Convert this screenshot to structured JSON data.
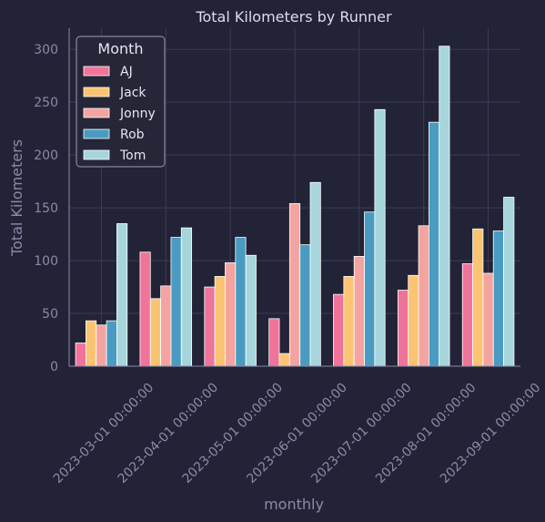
{
  "chart_data": {
    "type": "bar",
    "title": "Total Kilometers by Runner",
    "xlabel": "monthly",
    "ylabel": "Total Kilometers",
    "ylim": [
      0,
      320
    ],
    "yticks": [
      "0",
      "50",
      "100",
      "150",
      "200",
      "250",
      "300"
    ],
    "grid": true,
    "legend": {
      "title": "Month",
      "placement": "top-left"
    },
    "categories": [
      "2023-03-01 00:00:00",
      "2023-04-01 00:00:00",
      "2023-05-01 00:00:00",
      "2023-06-01 00:00:00",
      "2023-07-01 00:00:00",
      "2023-08-01 00:00:00",
      "2023-09-01 00:00:00"
    ],
    "series": [
      {
        "name": "AJ",
        "color": "#f0739a",
        "values": [
          22,
          108,
          75,
          45,
          68,
          72,
          97
        ]
      },
      {
        "name": "Jack",
        "color": "#fbc473",
        "values": [
          43,
          64,
          85,
          12,
          85,
          86,
          130
        ]
      },
      {
        "name": "Jonny",
        "color": "#f4a4a0",
        "values": [
          39,
          76,
          98,
          154,
          104,
          133,
          88
        ]
      },
      {
        "name": "Rob",
        "color": "#4a9bc1",
        "values": [
          43,
          122,
          122,
          115,
          146,
          231,
          128
        ]
      },
      {
        "name": "Tom",
        "color": "#a6d6dc",
        "values": [
          135,
          131,
          105,
          174,
          243,
          303,
          160
        ]
      }
    ]
  },
  "colors": {
    "background": "#232337",
    "grid": "#3b3b55",
    "axis": "#8a8aa8",
    "bar_edge": "#ffffff"
  }
}
